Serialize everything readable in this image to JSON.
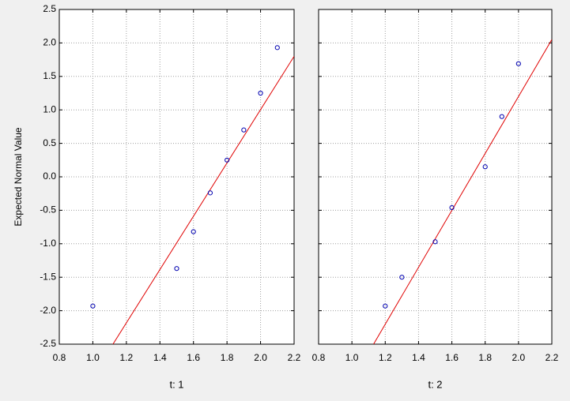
{
  "chart_data": [
    {
      "type": "scatter",
      "x_label": "t: 1",
      "y_label": "Expected Normal Value",
      "x": [
        1.0,
        1.5,
        1.6,
        1.7,
        1.8,
        1.9,
        2.0,
        2.1
      ],
      "y": [
        -1.93,
        -1.37,
        -0.82,
        -0.24,
        0.25,
        0.7,
        1.25,
        1.93
      ],
      "color": "#0000b0",
      "fit_line": {
        "x": [
          1.12,
          2.2
        ],
        "y": [
          -2.5,
          1.8
        ],
        "color": "#e00000"
      },
      "xlim": [
        0.8,
        2.2
      ],
      "ylim": [
        -2.5,
        2.5
      ],
      "xticks": [
        0.8,
        {
          "value": 1,
          "label": "1.0"
        },
        1.2,
        1.4,
        1.6,
        1.8,
        {
          "value": 2,
          "label": "2.0"
        },
        2.2
      ],
      "yticks": [
        {
          "value": -2.5,
          "label": "-2.5"
        },
        {
          "value": -2,
          "label": "-2.0"
        },
        {
          "value": -1.5,
          "label": "-1.5"
        },
        {
          "value": -1,
          "label": "-1.0"
        },
        {
          "value": -0.5,
          "label": "-0.5"
        },
        {
          "value": 0,
          "label": "0.0"
        },
        0.5,
        {
          "value": 1,
          "label": "1.0"
        },
        1.5,
        {
          "value": 2,
          "label": "2.0"
        },
        2.5
      ],
      "show_ytick_labels": true,
      "grid": true
    },
    {
      "type": "scatter",
      "x_label": "t: 2",
      "x": [
        1.2,
        1.3,
        1.5,
        1.6,
        1.8,
        1.9,
        2.0
      ],
      "y": [
        -1.93,
        -1.5,
        -0.97,
        -0.46,
        0.15,
        0.9,
        1.69
      ],
      "color": "#0000b0",
      "fit_line": {
        "x": [
          1.13,
          2.2
        ],
        "y": [
          -2.5,
          2.05
        ],
        "color": "#e00000"
      },
      "xlim": [
        0.8,
        2.2
      ],
      "ylim": [
        -2.5,
        2.5
      ],
      "xticks": [
        0.8,
        {
          "value": 1,
          "label": "1.0"
        },
        1.2,
        1.4,
        1.6,
        1.8,
        {
          "value": 2,
          "label": "2.0"
        },
        2.2
      ],
      "yticks": [
        -2.5,
        -2,
        -1.5,
        -1,
        -0.5,
        0,
        0.5,
        1,
        1.5,
        2,
        2.5
      ],
      "show_ytick_labels": false,
      "grid": true
    }
  ]
}
